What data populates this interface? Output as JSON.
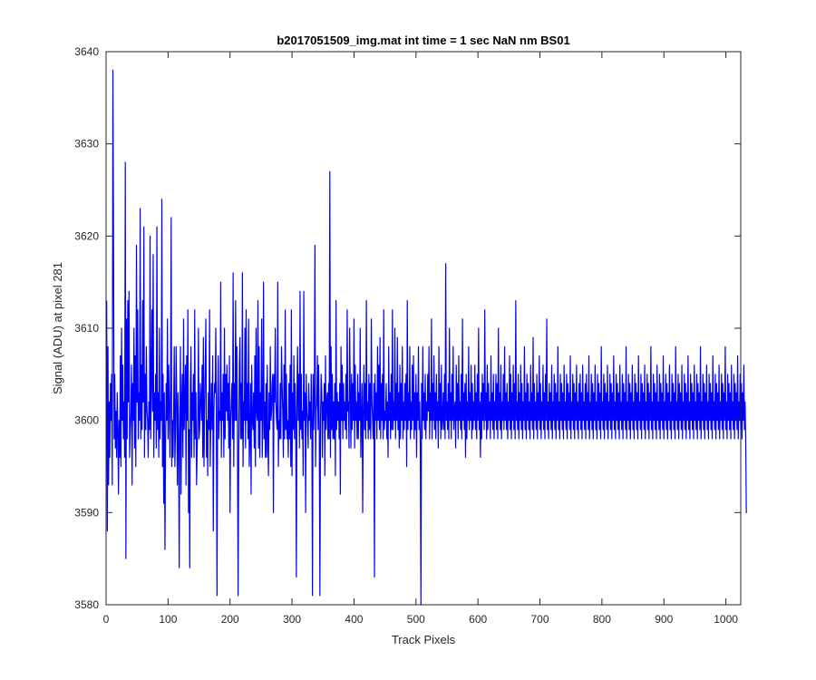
{
  "chart_data": {
    "type": "line",
    "title": "b2017051509_img.mat int time = 1 sec  NaN nm BS01",
    "xlabel": "Track Pixels",
    "ylabel": "Signal (ADU) at pixel 281",
    "xlim": [
      0,
      1024
    ],
    "ylim": [
      3580,
      3640
    ],
    "x_ticks": [
      "0",
      "100",
      "200",
      "300",
      "400",
      "500",
      "600",
      "700",
      "800",
      "900",
      "1000"
    ],
    "y_ticks": [
      "3580",
      "3590",
      "3600",
      "3610",
      "3620",
      "3630",
      "3640"
    ],
    "grid": false,
    "legend": "none",
    "series": [
      {
        "color": "#0000ff",
        "x_start": 1,
        "x_step": 1,
        "values": [
          3613,
          3588,
          3608,
          3593,
          3602,
          3596,
          3604,
          3600,
          3605,
          3593,
          3638,
          3620,
          3598,
          3605,
          3597,
          3601,
          3596,
          3603,
          3599,
          3592,
          3600,
          3596,
          3607,
          3595,
          3610,
          3600,
          3606,
          3598,
          3602,
          3596,
          3628,
          3585,
          3611,
          3598,
          3613,
          3602,
          3614,
          3596,
          3599,
          3601,
          3606,
          3593,
          3604,
          3600,
          3610,
          3597,
          3607,
          3595,
          3619,
          3602,
          3612,
          3598,
          3603,
          3600,
          3623,
          3598,
          3606,
          3599,
          3613,
          3602,
          3621,
          3596,
          3605,
          3599,
          3608,
          3601,
          3600,
          3596,
          3602,
          3599,
          3620,
          3598,
          3604,
          3612,
          3601,
          3618,
          3596,
          3603,
          3600,
          3605,
          3597,
          3621,
          3599,
          3603,
          3596,
          3610,
          3598,
          3602,
          3600,
          3624,
          3595,
          3605,
          3591,
          3603,
          3586,
          3598,
          3604,
          3600,
          3611,
          3598,
          3606,
          3602,
          3596,
          3603,
          3622,
          3595,
          3600,
          3596,
          3601,
          3608,
          3595,
          3599,
          3608,
          3602,
          3593,
          3603,
          3598,
          3584,
          3600,
          3608,
          3592,
          3602,
          3605,
          3596,
          3611,
          3599,
          3602,
          3606,
          3593,
          3607,
          3600,
          3612,
          3590,
          3599,
          3584,
          3604,
          3608,
          3596,
          3603,
          3600,
          3605,
          3596,
          3612,
          3598,
          3603,
          3593,
          3597,
          3600,
          3610,
          3598,
          3599,
          3604,
          3602,
          3600,
          3606,
          3596,
          3609,
          3595,
          3601,
          3606,
          3611,
          3596,
          3600,
          3594,
          3603,
          3599,
          3612,
          3595,
          3600,
          3604,
          3599,
          3607,
          3588,
          3601,
          3604,
          3603,
          3610,
          3599,
          3581,
          3602,
          3607,
          3598,
          3601,
          3600,
          3615,
          3596,
          3603,
          3600,
          3605,
          3596,
          3610,
          3598,
          3605,
          3601,
          3606,
          3600,
          3604,
          3597,
          3607,
          3590,
          3600,
          3602,
          3604,
          3598,
          3616,
          3595,
          3604,
          3600,
          3613,
          3600,
          3608,
          3598,
          3581,
          3596,
          3606,
          3609,
          3598,
          3604,
          3598,
          3616,
          3595,
          3602,
          3600,
          3610,
          3597,
          3612,
          3600,
          3604,
          3598,
          3611,
          3595,
          3598,
          3604,
          3592,
          3606,
          3600,
          3599,
          3603,
          3597,
          3607,
          3595,
          3610,
          3601,
          3600,
          3613,
          3597,
          3608,
          3596,
          3603,
          3600,
          3611,
          3596,
          3600,
          3615,
          3598,
          3602,
          3596,
          3604,
          3596,
          3606,
          3598,
          3594,
          3603,
          3599,
          3608,
          3600,
          3601,
          3604,
          3605,
          3590,
          3605,
          3602,
          3610,
          3602,
          3600,
          3599,
          3615,
          3595,
          3600,
          3598,
          3604,
          3598,
          3608,
          3604,
          3601,
          3596,
          3606,
          3598,
          3612,
          3599,
          3605,
          3598,
          3600,
          3596,
          3604,
          3598,
          3606,
          3595,
          3612,
          3594,
          3603,
          3599,
          3607,
          3598,
          3604,
          3600,
          3583,
          3603,
          3608,
          3600,
          3605,
          3597,
          3614,
          3599,
          3605,
          3598,
          3601,
          3594,
          3614,
          3600,
          3603,
          3590,
          3605,
          3601,
          3600,
          3597,
          3604,
          3600,
          3602,
          3598,
          3605,
          3600,
          3581,
          3605,
          3599,
          3602,
          3619,
          3595,
          3601,
          3602,
          3607,
          3599,
          3606,
          3599,
          3581,
          3600,
          3605,
          3603,
          3596,
          3602,
          3600,
          3604,
          3594,
          3607,
          3599,
          3602,
          3603,
          3598,
          3604,
          3598,
          3627,
          3596,
          3608,
          3599,
          3605,
          3598,
          3602,
          3598,
          3604,
          3594,
          3613,
          3599,
          3603,
          3600,
          3602,
          3598,
          3604,
          3592,
          3608,
          3600,
          3606,
          3598,
          3604,
          3600,
          3602,
          3599,
          3605,
          3598,
          3612,
          3601,
          3602,
          3597,
          3610,
          3603,
          3597,
          3605,
          3599,
          3604,
          3600,
          3611,
          3597,
          3606,
          3600,
          3602,
          3598,
          3605,
          3598,
          3603,
          3600,
          3610,
          3596,
          3600,
          3604,
          3590,
          3601,
          3606,
          3599,
          3604,
          3598,
          3613,
          3600,
          3602,
          3598,
          3605,
          3599,
          3604,
          3598,
          3611,
          3602,
          3600,
          3598,
          3604,
          3583,
          3605,
          3600,
          3603,
          3598,
          3608,
          3600,
          3606,
          3599,
          3609,
          3598,
          3604,
          3600,
          3605,
          3598,
          3612,
          3599,
          3601,
          3600,
          3604,
          3598,
          3602,
          3596,
          3608,
          3600,
          3603,
          3598,
          3605,
          3599,
          3612,
          3599,
          3602,
          3600,
          3610,
          3598,
          3604,
          3600,
          3609,
          3599,
          3603,
          3597,
          3606,
          3598,
          3604,
          3600,
          3608,
          3598,
          3602,
          3599,
          3604,
          3600,
          3605,
          3595,
          3613,
          3599,
          3603,
          3600,
          3608,
          3598,
          3602,
          3599,
          3606,
          3600,
          3607,
          3598,
          3603,
          3599,
          3605,
          3596,
          3603,
          3600,
          3608,
          3599,
          3602,
          3597,
          3580,
          3604,
          3598,
          3608,
          3600,
          3603,
          3599,
          3605,
          3598,
          3602,
          3600,
          3605,
          3601,
          3608,
          3598,
          3603,
          3600,
          3611,
          3598,
          3604,
          3600,
          3607,
          3599,
          3603,
          3598,
          3605,
          3600,
          3602,
          3597,
          3608,
          3600,
          3604,
          3598,
          3606,
          3599,
          3600,
          3603,
          3599,
          3605,
          3598,
          3617,
          3600,
          3602,
          3599,
          3604,
          3598,
          3610,
          3600,
          3603,
          3598,
          3605,
          3600,
          3608,
          3599,
          3601,
          3602,
          3597,
          3606,
          3600,
          3604,
          3598,
          3607,
          3600,
          3602,
          3599,
          3605,
          3598,
          3611,
          3600,
          3603,
          3599,
          3604,
          3596,
          3605,
          3598,
          3602,
          3600,
          3608,
          3599,
          3603,
          3600,
          3606,
          3598,
          3604,
          3599,
          3602,
          3600,
          3606,
          3599,
          3603,
          3598,
          3605,
          3600,
          3610,
          3599,
          3602,
          3596,
          3603,
          3598,
          3605,
          3600,
          3604,
          3599,
          3612,
          3600,
          3603,
          3598,
          3606,
          3599,
          3604,
          3600,
          3602,
          3598,
          3607,
          3600,
          3603,
          3599,
          3605,
          3598,
          3602,
          3600,
          3605,
          3599,
          3604,
          3598,
          3610,
          3600,
          3603,
          3599,
          3606,
          3598,
          3602,
          3600,
          3605,
          3599,
          3608,
          3600,
          3603,
          3599,
          3604,
          3598,
          3602,
          3600,
          3607,
          3599,
          3605,
          3598,
          3603,
          3600,
          3606,
          3599,
          3604,
          3598,
          3613,
          3600,
          3602,
          3599,
          3605,
          3598,
          3603,
          3600,
          3606,
          3599,
          3604,
          3598,
          3602,
          3600,
          3608,
          3599,
          3603,
          3598,
          3605,
          3600,
          3604,
          3599,
          3602,
          3598,
          3606,
          3600,
          3603,
          3599,
          3609,
          3598,
          3604,
          3600,
          3602,
          3599,
          3605,
          3598,
          3603,
          3600,
          3607,
          3599,
          3604,
          3598,
          3602,
          3600,
          3606,
          3599,
          3603,
          3598,
          3605,
          3600,
          3611,
          3599,
          3602,
          3598,
          3604,
          3600,
          3603,
          3599,
          3606,
          3598,
          3602,
          3600,
          3605,
          3599,
          3604,
          3598,
          3603,
          3600,
          3608,
          3599,
          3602,
          3598,
          3605,
          3600,
          3604,
          3599,
          3603,
          3598,
          3606,
          3600,
          3602,
          3599,
          3605,
          3598,
          3604,
          3600,
          3603,
          3599,
          3607,
          3598,
          3602,
          3600,
          3605,
          3599,
          3604,
          3598,
          3603,
          3600,
          3606,
          3599,
          3602,
          3598,
          3604,
          3600,
          3605,
          3599,
          3603,
          3598,
          3606,
          3600,
          3602,
          3599,
          3604,
          3598,
          3605,
          3600,
          3603,
          3599,
          3607,
          3598,
          3602,
          3600,
          3605,
          3599,
          3604,
          3598,
          3603,
          3600,
          3606,
          3599,
          3602,
          3598,
          3605,
          3600,
          3604,
          3599,
          3603,
          3598,
          3608,
          3600,
          3602,
          3599,
          3605,
          3598,
          3604,
          3600,
          3603,
          3599,
          3606,
          3598,
          3602,
          3600,
          3605,
          3599,
          3604,
          3598,
          3603,
          3600,
          3607,
          3599,
          3602,
          3598,
          3605,
          3600,
          3604,
          3599,
          3603,
          3598,
          3606,
          3600,
          3602,
          3599,
          3605,
          3598,
          3604,
          3600,
          3603,
          3599,
          3608,
          3598,
          3602,
          3600,
          3605,
          3599,
          3604,
          3598,
          3603,
          3600,
          3606,
          3599,
          3602,
          3598,
          3605,
          3600,
          3604,
          3599,
          3603,
          3598,
          3607,
          3600,
          3602,
          3599,
          3605,
          3598,
          3604,
          3600,
          3603,
          3599,
          3606,
          3598,
          3602,
          3600,
          3605,
          3599,
          3604,
          3598,
          3603,
          3600,
          3608,
          3599,
          3602,
          3598,
          3605,
          3600,
          3604,
          3599,
          3603,
          3598,
          3606,
          3600,
          3602,
          3599,
          3605,
          3598,
          3604,
          3600,
          3603,
          3599,
          3607,
          3598,
          3602,
          3600,
          3605,
          3599,
          3604,
          3598,
          3603,
          3600,
          3606,
          3599,
          3602,
          3598,
          3605,
          3600,
          3604,
          3599,
          3603,
          3598,
          3608,
          3600,
          3602,
          3599,
          3605,
          3598,
          3604,
          3600,
          3603,
          3599,
          3606,
          3598,
          3602,
          3600,
          3605,
          3599,
          3604,
          3598,
          3603,
          3600,
          3607,
          3599,
          3602,
          3598,
          3605,
          3600,
          3604,
          3599,
          3603,
          3598,
          3606,
          3600,
          3602,
          3599,
          3605,
          3598,
          3604,
          3600,
          3603,
          3599,
          3608,
          3598,
          3602,
          3600,
          3605,
          3599,
          3604,
          3598,
          3603,
          3600,
          3606,
          3599,
          3602,
          3598,
          3605,
          3600,
          3604,
          3599,
          3603,
          3598,
          3607,
          3600,
          3602,
          3599,
          3605,
          3598,
          3604,
          3600,
          3603,
          3599,
          3606,
          3598,
          3602,
          3600,
          3605,
          3599,
          3604,
          3598,
          3603,
          3600,
          3608,
          3599,
          3602,
          3598,
          3605,
          3600,
          3604,
          3599,
          3603,
          3598,
          3606,
          3600,
          3602,
          3599,
          3605,
          3598,
          3604,
          3600,
          3603,
          3599,
          3607,
          3598,
          3602,
          3600,
          3605,
          3599,
          3604,
          3598,
          3603,
          3600,
          3606,
          3599,
          3602,
          3598,
          3590,
          3590
        ]
      }
    ]
  }
}
